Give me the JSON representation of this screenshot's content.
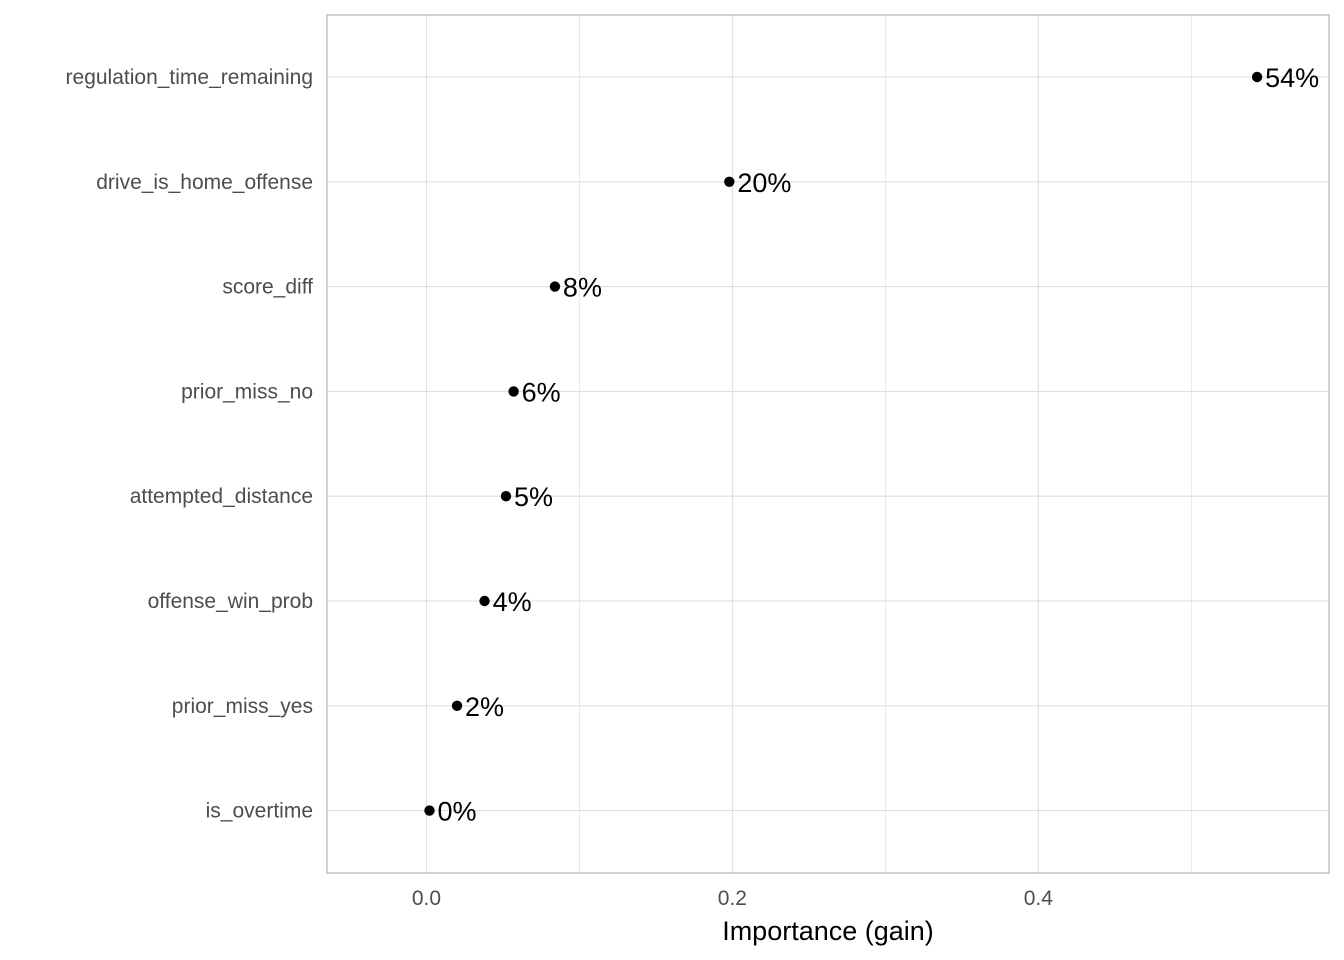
{
  "chart_data": {
    "type": "scatter",
    "orientation": "horizontal-dot",
    "title": "",
    "xlabel": "Importance (gain)",
    "ylabel": "",
    "xlim": [
      -0.065,
      0.59
    ],
    "x_ticks": [
      {
        "value": 0.0,
        "label": "0.0"
      },
      {
        "value": 0.2,
        "label": "0.2"
      },
      {
        "value": 0.4,
        "label": "0.4"
      }
    ],
    "x_minor_ticks": [
      0.1,
      0.3,
      0.5
    ],
    "grid": true,
    "categories": [
      "regulation_time_remaining",
      "drive_is_home_offense",
      "score_diff",
      "prior_miss_no",
      "attempted_distance",
      "offense_win_prob",
      "prior_miss_yes",
      "is_overtime"
    ],
    "values": [
      0.543,
      0.198,
      0.084,
      0.057,
      0.052,
      0.038,
      0.02,
      0.002
    ],
    "data_labels": [
      "54%",
      "20%",
      "8%",
      "6%",
      "5%",
      "4%",
      "2%",
      "0%"
    ],
    "colors": {
      "point": "#000000",
      "grid": "#dedede",
      "panel_border": "#b3b3b3",
      "tick_text": "#4d4d4d"
    }
  }
}
